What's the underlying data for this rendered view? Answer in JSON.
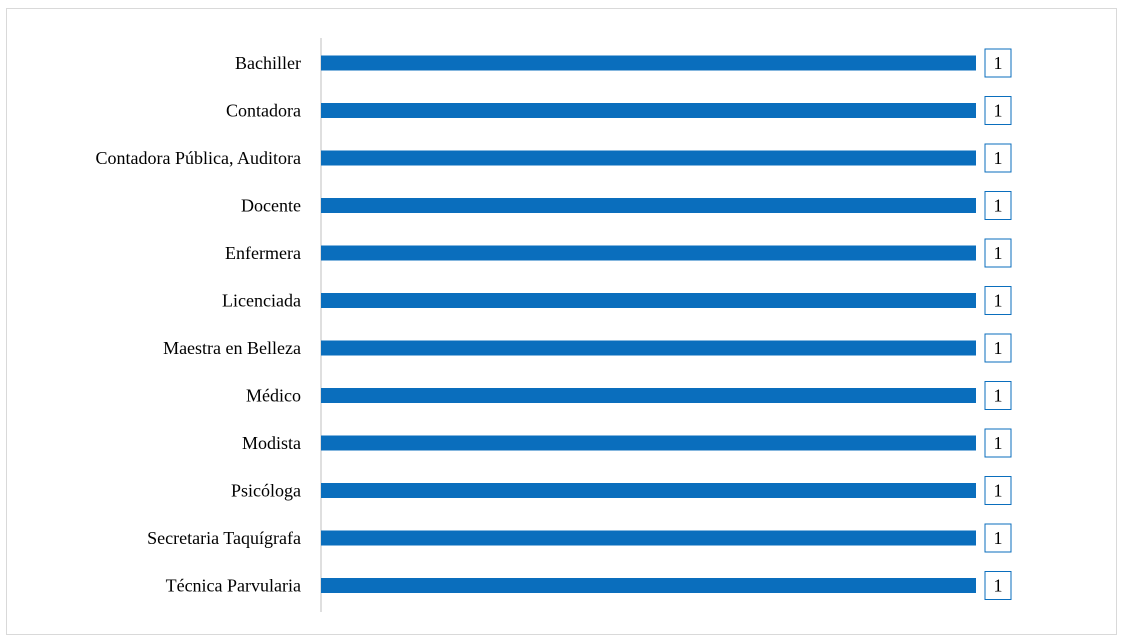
{
  "chart_data": {
    "type": "bar",
    "orientation": "horizontal",
    "categories": [
      "Bachiller",
      "Contadora ",
      "Contadora Pública, Auditora",
      "Docente",
      "Enfermera",
      "Licenciada",
      "Maestra en Belleza",
      "Médico",
      "Modista",
      "Psicóloga",
      "Secretaria Taquígrafa",
      "Técnica Parvularia"
    ],
    "values": [
      1,
      1,
      1,
      1,
      1,
      1,
      1,
      1,
      1,
      1,
      1,
      1
    ],
    "data_labels": [
      "1",
      "1",
      "1",
      "1",
      "1",
      "1",
      "1",
      "1",
      "1",
      "1",
      "1",
      "1"
    ],
    "xlim": [
      0,
      1
    ],
    "grid": false,
    "legend": "none",
    "colors": {
      "bar": "#0a6ebd",
      "axis": "#bfbfbf",
      "label_border": "#0a6ebd",
      "frame": "#d9d9d9"
    }
  }
}
